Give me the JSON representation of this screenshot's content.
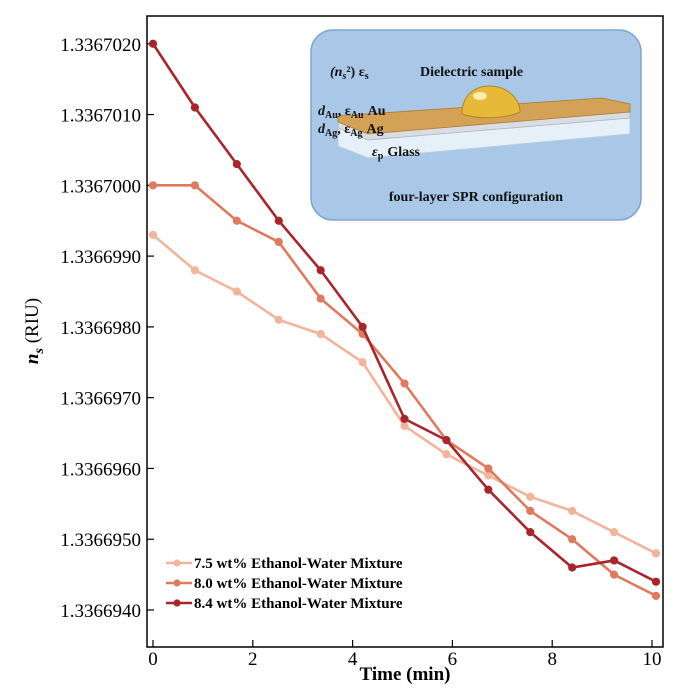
{
  "chart_data": {
    "type": "line",
    "xlabel": "Time (min)",
    "ylabel_symbol": "n",
    "ylabel_subscript": "s",
    "ylabel_unit": "(RIU)",
    "xlim": [
      0,
      10.1
    ],
    "ylim": [
      1.336694,
      1.33670235
    ],
    "xticks": [
      0,
      2,
      4,
      6,
      8,
      10
    ],
    "xtick_labels": [
      "0",
      "2",
      "4",
      "6",
      "8",
      "10"
    ],
    "yticks": [
      1.336694,
      1.336695,
      1.336696,
      1.336697,
      1.336698,
      1.336699,
      1.3367,
      1.336701,
      1.336702
    ],
    "ytick_labels": [
      "1.3366940",
      "1.3366950",
      "1.3366960",
      "1.3366970",
      "1.3366980",
      "1.3366990",
      "1.3367000",
      "1.3367010",
      "1.3367020"
    ],
    "series": [
      {
        "name": "7.5 wt% Ethanol-Water Mixture",
        "color": "#f2b49a",
        "x": [
          0,
          0.84,
          1.68,
          2.52,
          3.36,
          4.2,
          5.04,
          5.88,
          6.72,
          7.56,
          8.4,
          9.24,
          10.08
        ],
        "y": [
          1.3366993,
          1.3366988,
          1.3366985,
          1.3366981,
          1.3366979,
          1.3366975,
          1.3366966,
          1.3366962,
          1.3366959,
          1.3366956,
          1.3366954,
          1.3366951,
          1.3366948
        ]
      },
      {
        "name": "8.0 wt% Ethanol-Water Mixture",
        "color": "#e07a5f",
        "x": [
          0,
          0.84,
          1.68,
          2.52,
          3.36,
          4.2,
          5.04,
          5.88,
          6.72,
          7.56,
          8.4,
          9.24,
          10.08
        ],
        "y": [
          1.3367,
          1.3367,
          1.3366995,
          1.3366992,
          1.3366984,
          1.3366979,
          1.3366972,
          1.3366964,
          1.336696,
          1.3366954,
          1.336695,
          1.3366945,
          1.3366942
        ]
      },
      {
        "name": "8.4 wt% Ethanol-Water Mixture",
        "color": "#a8262b",
        "x": [
          0,
          0.84,
          1.68,
          2.52,
          3.36,
          4.2,
          5.04,
          5.88,
          6.72,
          7.56,
          8.4,
          9.24,
          10.08
        ],
        "y": [
          1.336702,
          1.3367011,
          1.3367003,
          1.3366995,
          1.3366988,
          1.336698,
          1.3366967,
          1.3366964,
          1.3366957,
          1.3366951,
          1.3366946,
          1.3366947,
          1.3366944
        ]
      }
    ],
    "legend_position": "bottom-left",
    "grid": false
  },
  "inset": {
    "caption": "four-layer SPR configuration",
    "sample_label": "Dielectric sample",
    "sample_vars": "(n",
    "sample_vars_sub": "s",
    "sample_vars_tail": "²) ε",
    "sample_vars_tail_sub": "s",
    "au_vars": "d",
    "au_vars_sub": "Au",
    "au_eps": ", ε",
    "au_eps_sub": "Au",
    "au_label": "Au",
    "ag_vars": "d",
    "ag_vars_sub": "Ag",
    "ag_eps": ", ε",
    "ag_eps_sub": "Ag",
    "ag_label": "Ag",
    "glass_eps": "ε",
    "glass_eps_sub": "p",
    "glass_label": "Glass",
    "colors": {
      "box": "#a9c7e6",
      "box_edge": "#7ea6d2",
      "gold": "#d4a257",
      "silver": "#d9dde3",
      "glass": "#e6f0f8",
      "drop": "#e8b838"
    }
  }
}
